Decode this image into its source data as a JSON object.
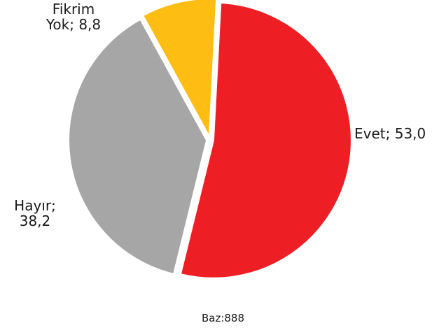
{
  "chart_data": {
    "type": "pie",
    "title": "",
    "slices": [
      {
        "name": "Evet",
        "value": 53.0,
        "label_lines": [
          "Evet; 53,0"
        ],
        "color": "#ed1f24"
      },
      {
        "name": "Hayır",
        "value": 38.2,
        "label_lines": [
          "Hayır;",
          "38,2"
        ],
        "color": "#a6a6a6"
      },
      {
        "name": "Fikrim Yok",
        "value": 8.8,
        "label_lines": [
          "Fikrim",
          "Yok; 8,8"
        ],
        "color": "#fdbd12"
      }
    ],
    "exploded": true,
    "legend": "none",
    "footnote": "Baz:888"
  }
}
